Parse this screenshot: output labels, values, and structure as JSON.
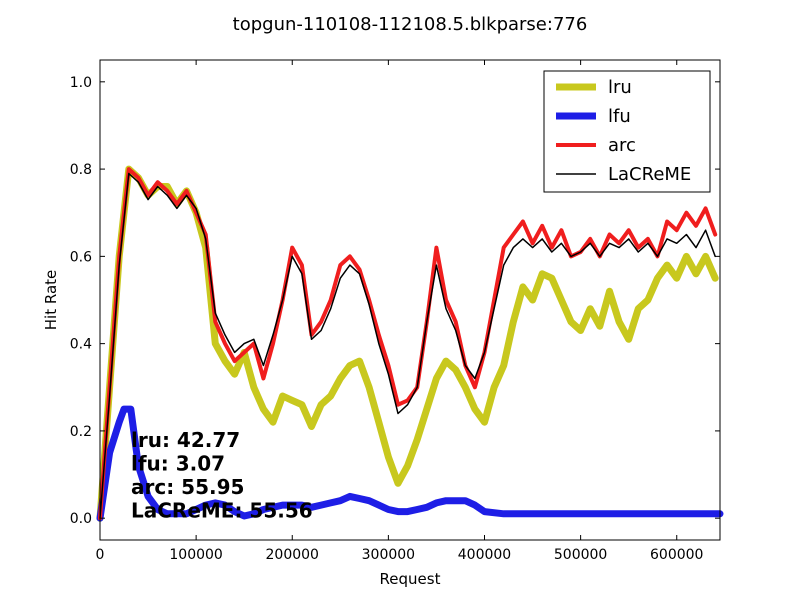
{
  "chart_data": {
    "type": "line",
    "title": "topgun-110108-112108.5.blkparse:776",
    "xlabel": "Request",
    "ylabel": "Hit Rate",
    "xlim": [
      0,
      645000
    ],
    "ylim": [
      -0.05,
      1.05
    ],
    "x_ticks": [
      0,
      100000,
      200000,
      300000,
      400000,
      500000,
      600000
    ],
    "x_tick_labels": [
      "0",
      "100000",
      "200000",
      "300000",
      "400000",
      "500000",
      "600000"
    ],
    "y_ticks": [
      0.0,
      0.2,
      0.4,
      0.6,
      0.8,
      1.0
    ],
    "y_tick_labels": [
      "0.0",
      "0.2",
      "0.4",
      "0.6",
      "0.8",
      "1.0"
    ],
    "grid": false,
    "legend_position": "top-right",
    "series": [
      {
        "name": "lru",
        "color": "#c8c81e",
        "linewidth": "thick",
        "points": [
          [
            0,
            0.0
          ],
          [
            10000,
            0.3
          ],
          [
            20000,
            0.6
          ],
          [
            30000,
            0.8
          ],
          [
            40000,
            0.78
          ],
          [
            50000,
            0.74
          ],
          [
            60000,
            0.76
          ],
          [
            70000,
            0.76
          ],
          [
            80000,
            0.72
          ],
          [
            90000,
            0.75
          ],
          [
            100000,
            0.7
          ],
          [
            110000,
            0.62
          ],
          [
            120000,
            0.4
          ],
          [
            130000,
            0.36
          ],
          [
            140000,
            0.33
          ],
          [
            150000,
            0.38
          ],
          [
            160000,
            0.3
          ],
          [
            170000,
            0.25
          ],
          [
            180000,
            0.22
          ],
          [
            190000,
            0.28
          ],
          [
            200000,
            0.27
          ],
          [
            210000,
            0.26
          ],
          [
            220000,
            0.21
          ],
          [
            230000,
            0.26
          ],
          [
            240000,
            0.28
          ],
          [
            250000,
            0.32
          ],
          [
            260000,
            0.35
          ],
          [
            270000,
            0.36
          ],
          [
            280000,
            0.3
          ],
          [
            290000,
            0.22
          ],
          [
            300000,
            0.14
          ],
          [
            310000,
            0.08
          ],
          [
            320000,
            0.12
          ],
          [
            330000,
            0.18
          ],
          [
            340000,
            0.25
          ],
          [
            350000,
            0.32
          ],
          [
            360000,
            0.36
          ],
          [
            370000,
            0.34
          ],
          [
            380000,
            0.3
          ],
          [
            390000,
            0.25
          ],
          [
            400000,
            0.22
          ],
          [
            410000,
            0.3
          ],
          [
            420000,
            0.35
          ],
          [
            430000,
            0.45
          ],
          [
            440000,
            0.53
          ],
          [
            450000,
            0.5
          ],
          [
            460000,
            0.56
          ],
          [
            470000,
            0.55
          ],
          [
            480000,
            0.5
          ],
          [
            490000,
            0.45
          ],
          [
            500000,
            0.43
          ],
          [
            510000,
            0.48
          ],
          [
            520000,
            0.44
          ],
          [
            530000,
            0.52
          ],
          [
            540000,
            0.45
          ],
          [
            550000,
            0.41
          ],
          [
            560000,
            0.48
          ],
          [
            570000,
            0.5
          ],
          [
            580000,
            0.55
          ],
          [
            590000,
            0.58
          ],
          [
            600000,
            0.55
          ],
          [
            610000,
            0.6
          ],
          [
            620000,
            0.56
          ],
          [
            630000,
            0.6
          ],
          [
            640000,
            0.55
          ]
        ]
      },
      {
        "name": "lfu",
        "color": "#1e1ee6",
        "linewidth": "thick",
        "points": [
          [
            0,
            0.0
          ],
          [
            10000,
            0.15
          ],
          [
            20000,
            0.22
          ],
          [
            25000,
            0.25
          ],
          [
            32000,
            0.25
          ],
          [
            40000,
            0.12
          ],
          [
            50000,
            0.05
          ],
          [
            60000,
            0.02
          ],
          [
            70000,
            0.01
          ],
          [
            80000,
            0.01
          ],
          [
            90000,
            0.01
          ],
          [
            100000,
            0.02
          ],
          [
            110000,
            0.03
          ],
          [
            120000,
            0.035
          ],
          [
            130000,
            0.03
          ],
          [
            140000,
            0.015
          ],
          [
            150000,
            0.005
          ],
          [
            160000,
            0.01
          ],
          [
            170000,
            0.02
          ],
          [
            180000,
            0.025
          ],
          [
            190000,
            0.03
          ],
          [
            200000,
            0.03
          ],
          [
            210000,
            0.03
          ],
          [
            220000,
            0.025
          ],
          [
            230000,
            0.03
          ],
          [
            240000,
            0.035
          ],
          [
            250000,
            0.04
          ],
          [
            260000,
            0.05
          ],
          [
            270000,
            0.045
          ],
          [
            280000,
            0.04
          ],
          [
            290000,
            0.03
          ],
          [
            300000,
            0.02
          ],
          [
            310000,
            0.015
          ],
          [
            320000,
            0.015
          ],
          [
            330000,
            0.02
          ],
          [
            340000,
            0.025
          ],
          [
            350000,
            0.035
          ],
          [
            360000,
            0.04
          ],
          [
            370000,
            0.04
          ],
          [
            380000,
            0.04
          ],
          [
            390000,
            0.03
          ],
          [
            400000,
            0.015
          ],
          [
            420000,
            0.01
          ],
          [
            450000,
            0.01
          ],
          [
            500000,
            0.01
          ],
          [
            550000,
            0.01
          ],
          [
            600000,
            0.01
          ],
          [
            645000,
            0.01
          ]
        ]
      },
      {
        "name": "arc",
        "color": "#f01e1e",
        "linewidth": "medium",
        "points": [
          [
            0,
            0.0
          ],
          [
            10000,
            0.3
          ],
          [
            20000,
            0.6
          ],
          [
            30000,
            0.8
          ],
          [
            40000,
            0.78
          ],
          [
            50000,
            0.74
          ],
          [
            60000,
            0.77
          ],
          [
            70000,
            0.75
          ],
          [
            80000,
            0.72
          ],
          [
            90000,
            0.75
          ],
          [
            100000,
            0.7
          ],
          [
            110000,
            0.65
          ],
          [
            120000,
            0.45
          ],
          [
            130000,
            0.4
          ],
          [
            140000,
            0.36
          ],
          [
            150000,
            0.38
          ],
          [
            160000,
            0.4
          ],
          [
            170000,
            0.32
          ],
          [
            180000,
            0.4
          ],
          [
            190000,
            0.5
          ],
          [
            200000,
            0.62
          ],
          [
            210000,
            0.58
          ],
          [
            220000,
            0.42
          ],
          [
            230000,
            0.45
          ],
          [
            240000,
            0.5
          ],
          [
            250000,
            0.58
          ],
          [
            260000,
            0.6
          ],
          [
            270000,
            0.57
          ],
          [
            280000,
            0.5
          ],
          [
            290000,
            0.42
          ],
          [
            300000,
            0.35
          ],
          [
            310000,
            0.26
          ],
          [
            320000,
            0.27
          ],
          [
            330000,
            0.3
          ],
          [
            340000,
            0.45
          ],
          [
            350000,
            0.62
          ],
          [
            360000,
            0.5
          ],
          [
            370000,
            0.45
          ],
          [
            380000,
            0.35
          ],
          [
            390000,
            0.3
          ],
          [
            400000,
            0.38
          ],
          [
            410000,
            0.5
          ],
          [
            420000,
            0.62
          ],
          [
            430000,
            0.65
          ],
          [
            440000,
            0.68
          ],
          [
            450000,
            0.63
          ],
          [
            460000,
            0.67
          ],
          [
            470000,
            0.62
          ],
          [
            480000,
            0.66
          ],
          [
            490000,
            0.6
          ],
          [
            500000,
            0.61
          ],
          [
            510000,
            0.64
          ],
          [
            520000,
            0.6
          ],
          [
            530000,
            0.65
          ],
          [
            540000,
            0.63
          ],
          [
            550000,
            0.66
          ],
          [
            560000,
            0.62
          ],
          [
            570000,
            0.64
          ],
          [
            580000,
            0.6
          ],
          [
            590000,
            0.68
          ],
          [
            600000,
            0.66
          ],
          [
            610000,
            0.7
          ],
          [
            620000,
            0.67
          ],
          [
            630000,
            0.71
          ],
          [
            640000,
            0.65
          ]
        ]
      },
      {
        "name": "LaCReME",
        "color": "#000000",
        "linewidth": "thin",
        "points": [
          [
            0,
            0.0
          ],
          [
            10000,
            0.28
          ],
          [
            20000,
            0.58
          ],
          [
            30000,
            0.79
          ],
          [
            40000,
            0.77
          ],
          [
            50000,
            0.73
          ],
          [
            60000,
            0.76
          ],
          [
            70000,
            0.74
          ],
          [
            80000,
            0.71
          ],
          [
            90000,
            0.74
          ],
          [
            100000,
            0.71
          ],
          [
            110000,
            0.64
          ],
          [
            120000,
            0.47
          ],
          [
            130000,
            0.42
          ],
          [
            140000,
            0.38
          ],
          [
            150000,
            0.4
          ],
          [
            160000,
            0.41
          ],
          [
            170000,
            0.35
          ],
          [
            180000,
            0.42
          ],
          [
            190000,
            0.5
          ],
          [
            200000,
            0.6
          ],
          [
            210000,
            0.56
          ],
          [
            220000,
            0.41
          ],
          [
            230000,
            0.43
          ],
          [
            240000,
            0.48
          ],
          [
            250000,
            0.55
          ],
          [
            260000,
            0.58
          ],
          [
            270000,
            0.56
          ],
          [
            280000,
            0.49
          ],
          [
            290000,
            0.4
          ],
          [
            300000,
            0.33
          ],
          [
            310000,
            0.24
          ],
          [
            320000,
            0.26
          ],
          [
            330000,
            0.3
          ],
          [
            340000,
            0.45
          ],
          [
            350000,
            0.58
          ],
          [
            360000,
            0.48
          ],
          [
            370000,
            0.43
          ],
          [
            380000,
            0.35
          ],
          [
            390000,
            0.32
          ],
          [
            400000,
            0.38
          ],
          [
            410000,
            0.48
          ],
          [
            420000,
            0.58
          ],
          [
            430000,
            0.62
          ],
          [
            440000,
            0.64
          ],
          [
            450000,
            0.62
          ],
          [
            460000,
            0.64
          ],
          [
            470000,
            0.61
          ],
          [
            480000,
            0.63
          ],
          [
            490000,
            0.6
          ],
          [
            500000,
            0.61
          ],
          [
            510000,
            0.63
          ],
          [
            520000,
            0.6
          ],
          [
            530000,
            0.63
          ],
          [
            540000,
            0.62
          ],
          [
            550000,
            0.64
          ],
          [
            560000,
            0.61
          ],
          [
            570000,
            0.63
          ],
          [
            580000,
            0.6
          ],
          [
            590000,
            0.64
          ],
          [
            600000,
            0.63
          ],
          [
            610000,
            0.65
          ],
          [
            620000,
            0.62
          ],
          [
            630000,
            0.66
          ],
          [
            640000,
            0.6
          ]
        ]
      }
    ],
    "annotations": [
      {
        "label": "lru:",
        "value": "42.77"
      },
      {
        "label": "lfu:",
        "value": "3.07"
      },
      {
        "label": "arc:",
        "value": "55.95"
      },
      {
        "label": "LaCReME:",
        "value": "55.56"
      }
    ]
  }
}
